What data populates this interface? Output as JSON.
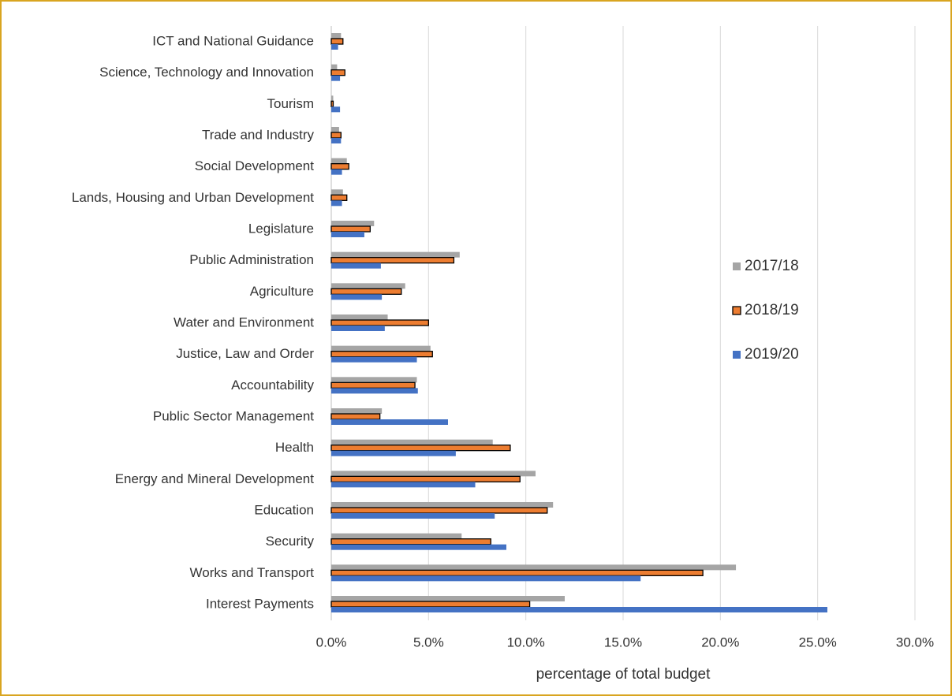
{
  "chart_data": {
    "type": "barh",
    "categories": [
      "ICT and National Guidance",
      "Science, Technology and Innovation",
      "Tourism",
      "Trade and Industry",
      "Social Development",
      "Lands, Housing and Urban Development",
      "Legislature",
      "Public Administration",
      "Agriculture",
      "Water and Environment",
      "Justice, Law and Order",
      "Accountability",
      "Public Sector Management",
      "Health",
      "Energy and Mineral Development",
      "Education",
      "Security",
      "Works and Transport",
      "Interest Payments"
    ],
    "series": [
      {
        "name": "2017/18",
        "color": "#a5a5a5",
        "values": [
          0.5,
          0.3,
          0.1,
          0.4,
          0.8,
          0.6,
          2.2,
          6.6,
          3.8,
          2.9,
          5.1,
          4.4,
          2.6,
          8.3,
          10.5,
          11.4,
          6.7,
          20.8,
          12.0
        ]
      },
      {
        "name": "2018/19",
        "color": "#ed7d31",
        "edgecolor": "#000000",
        "values": [
          0.6,
          0.7,
          0.1,
          0.5,
          0.9,
          0.8,
          2.0,
          6.3,
          3.6,
          5.0,
          5.2,
          4.3,
          2.5,
          9.2,
          9.7,
          11.1,
          8.2,
          19.1,
          10.2
        ]
      },
      {
        "name": "2019/20",
        "color": "#4472c4",
        "values": [
          0.35,
          0.45,
          0.45,
          0.5,
          0.55,
          0.55,
          1.7,
          2.55,
          2.6,
          2.75,
          4.4,
          4.45,
          6.0,
          6.4,
          7.4,
          8.4,
          9.0,
          15.9,
          25.5
        ]
      }
    ],
    "xlabel": "percentage of total budget",
    "xlim": [
      0,
      30
    ],
    "xticks": [
      {
        "value": 0,
        "label": "0.0%"
      },
      {
        "value": 5,
        "label": "5.0%"
      },
      {
        "value": 10,
        "label": "10.0%"
      },
      {
        "value": 15,
        "label": "15.0%"
      },
      {
        "value": 20,
        "label": "20.0%"
      },
      {
        "value": 25,
        "label": "25.0%"
      },
      {
        "value": 30,
        "label": "30.0%"
      }
    ],
    "grid": true,
    "legend": "right"
  }
}
